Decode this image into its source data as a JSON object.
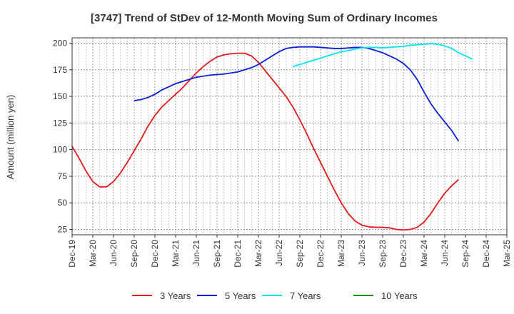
{
  "chart_data": {
    "type": "line",
    "title": "[3747]  Trend of StDev of 12-Month Moving Sum of Ordinary Incomes",
    "ylabel": "Amount (million yen)",
    "xlabel": "",
    "ylim": [
      20,
      205
    ],
    "yticks": [
      25,
      50,
      75,
      100,
      125,
      150,
      175,
      200
    ],
    "x_ticks": [
      "Dec-19",
      "Mar-20",
      "Jun-20",
      "Sep-20",
      "Dec-20",
      "Mar-21",
      "Jun-21",
      "Sep-21",
      "Dec-21",
      "Mar-22",
      "Jun-22",
      "Sep-22",
      "Dec-22",
      "Mar-23",
      "Jun-23",
      "Sep-23",
      "Dec-23",
      "Mar-24",
      "Jun-24",
      "Sep-24",
      "Dec-24",
      "Mar-25"
    ],
    "grid": true,
    "legend_position": "bottom",
    "x_start": "2019-12",
    "series": [
      {
        "name": "3 Years",
        "color": "#e31a1c",
        "start": "2019-12",
        "values": [
          103,
          92,
          80,
          70,
          65,
          65,
          70,
          78,
          88,
          99,
          110,
          122,
          132,
          140,
          146,
          152,
          158,
          165,
          172,
          178,
          183,
          187,
          189,
          190,
          190.5,
          190.5,
          188,
          182,
          174,
          166,
          158,
          150,
          140,
          128,
          115,
          101,
          88,
          75,
          62,
          50,
          40,
          33,
          29,
          27.5,
          27,
          27,
          26.5,
          25,
          24.5,
          25,
          27,
          32,
          40,
          50,
          59,
          66,
          72
        ]
      },
      {
        "name": "5 Years",
        "color": "#0a1fd6",
        "start": "2020-09",
        "values": [
          146,
          147,
          149,
          152,
          156,
          159,
          162,
          164,
          166,
          168,
          169,
          170,
          170.5,
          171,
          172,
          173,
          175,
          177,
          180,
          184,
          188,
          192,
          195,
          196,
          196.5,
          196.5,
          196.5,
          196,
          195.5,
          195,
          195,
          195.5,
          196,
          196,
          195,
          193,
          191,
          188,
          185,
          181,
          175,
          166,
          154,
          143,
          134,
          126,
          118,
          108
        ]
      },
      {
        "name": "7 Years",
        "color": "#00e5ee",
        "start": "2022-08",
        "values": [
          178,
          180,
          182,
          184,
          186,
          188,
          190,
          192,
          193,
          194.5,
          195.5,
          196,
          196,
          195.5,
          196,
          196.5,
          197,
          198,
          198.5,
          199,
          199.5,
          199,
          197.5,
          195,
          191,
          188,
          185
        ]
      },
      {
        "name": "10 Years",
        "color": "#1f8a1f",
        "start": "2024-12",
        "values": []
      }
    ]
  }
}
